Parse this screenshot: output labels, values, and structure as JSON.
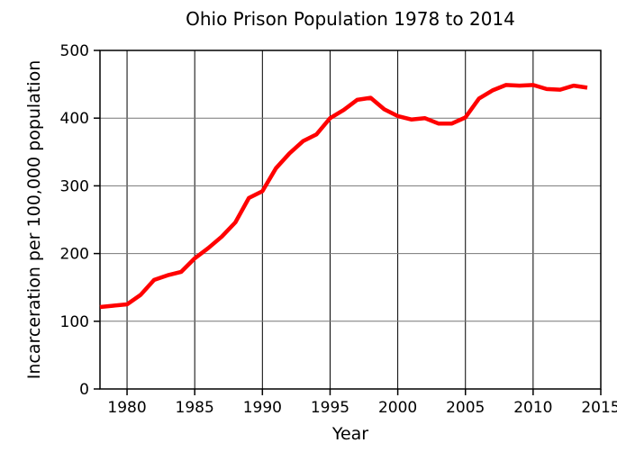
{
  "chart_data": {
    "type": "line",
    "title": "Ohio Prison Population 1978 to 2014",
    "xlabel": "Year",
    "ylabel": "Incarceration per 100,000 population",
    "xlim": [
      1978,
      2015
    ],
    "ylim": [
      0,
      500
    ],
    "x_ticks": [
      1980,
      1985,
      1990,
      1995,
      2000,
      2005,
      2010,
      2015
    ],
    "y_ticks": [
      0,
      100,
      200,
      300,
      400,
      500
    ],
    "grid": true,
    "legend": "none",
    "series": [
      {
        "color": "#ff0000",
        "x": [
          1978,
          1979,
          1980,
          1981,
          1982,
          1983,
          1984,
          1985,
          1986,
          1987,
          1988,
          1989,
          1990,
          1991,
          1992,
          1993,
          1994,
          1995,
          1996,
          1997,
          1998,
          1999,
          2000,
          2001,
          2002,
          2003,
          2004,
          2005,
          2006,
          2007,
          2008,
          2009,
          2010,
          2011,
          2012,
          2013,
          2014
        ],
        "values": [
          121,
          123,
          125,
          139,
          161,
          168,
          173,
          193,
          208,
          225,
          246,
          282,
          292,
          326,
          348,
          366,
          376,
          400,
          412,
          427,
          430,
          413,
          403,
          398,
          400,
          392,
          392,
          401,
          429,
          441,
          449,
          448,
          449,
          443,
          442,
          448,
          445
        ]
      }
    ]
  }
}
